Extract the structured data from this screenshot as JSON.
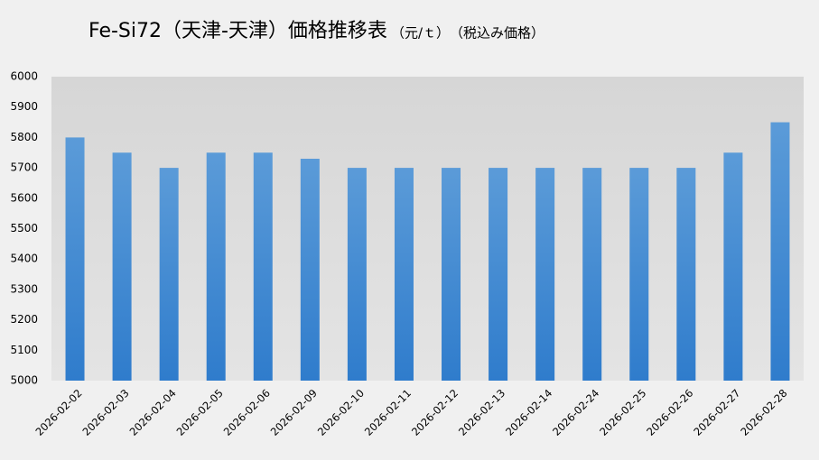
{
  "chart_data": {
    "type": "bar",
    "title": "Fe-Si72（天津-天津）価格推移表",
    "subtitle": "（元/ｔ）　（税込み価格）",
    "categories": [
      "2026-02-02",
      "2026-02-03",
      "2026-02-04",
      "2026-02-05",
      "2026-02-06",
      "2026-02-09",
      "2026-02-10",
      "2026-02-11",
      "2026-02-12",
      "2026-02-13",
      "2026-02-14",
      "2026-02-24",
      "2026-02-25",
      "2026-02-26",
      "2026-02-27",
      "2026-02-28"
    ],
    "values": [
      5800,
      5750,
      5700,
      5750,
      5750,
      5730,
      5700,
      5700,
      5700,
      5700,
      5700,
      5700,
      5700,
      5700,
      5750,
      5850
    ],
    "color": "#4a8fd6",
    "ylim": [
      5000,
      6000
    ],
    "yticks": [
      5000,
      5100,
      5200,
      5300,
      5400,
      5500,
      5600,
      5700,
      5800,
      5900,
      6000
    ],
    "grid": false
  }
}
